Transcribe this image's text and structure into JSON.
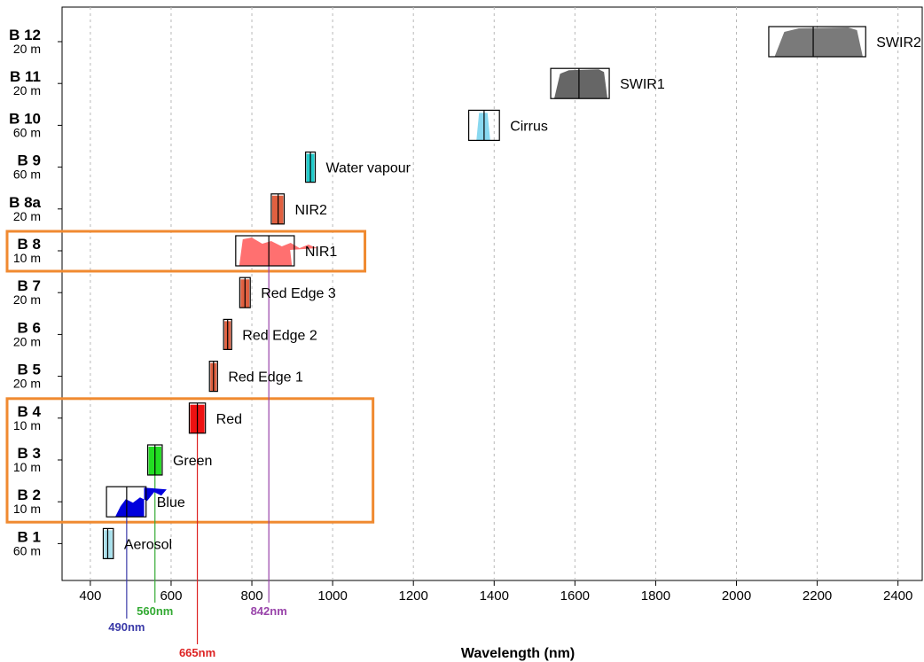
{
  "chart_data": {
    "type": "bar",
    "xlabel": "Wavelength (nm)",
    "xlim": [
      330,
      2460
    ],
    "xticks": [
      400,
      600,
      800,
      1000,
      1200,
      1400,
      1600,
      1800,
      2000,
      2200,
      2400
    ],
    "grid": "vertical dashed",
    "bands": [
      {
        "id": "B 1",
        "res": "60 m",
        "label": "Aerosol",
        "center": 443,
        "box": [
          432,
          457
        ],
        "fill": "#a8e0ec",
        "shape": "flat"
      },
      {
        "id": "B 2",
        "res": "10 m",
        "label": "Blue",
        "center": 490,
        "box": [
          440,
          538
        ],
        "fill": "#0000dd",
        "shape": "blue"
      },
      {
        "id": "B 3",
        "res": "10 m",
        "label": "Green",
        "center": 560,
        "box": [
          542,
          578
        ],
        "fill": "#22dd22",
        "shape": "flat"
      },
      {
        "id": "B 4",
        "res": "10 m",
        "label": "Red",
        "center": 665,
        "box": [
          645,
          685
        ],
        "fill": "#ee1111",
        "shape": "flat"
      },
      {
        "id": "B 5",
        "res": "20 m",
        "label": "Red Edge 1",
        "center": 705,
        "box": [
          695,
          715
        ],
        "fill": "#e06040",
        "shape": "flat"
      },
      {
        "id": "B 6",
        "res": "20 m",
        "label": "Red Edge 2",
        "center": 740,
        "box": [
          730,
          750
        ],
        "fill": "#e06040",
        "shape": "flat"
      },
      {
        "id": "B 7",
        "res": "20 m",
        "label": "Red Edge 3",
        "center": 783,
        "box": [
          770,
          796
        ],
        "fill": "#e06040",
        "shape": "flat"
      },
      {
        "id": "B 8",
        "res": "10 m",
        "label": "NIR1",
        "center": 842,
        "box": [
          760,
          905
        ],
        "fill": "#ff7070",
        "shape": "nir1"
      },
      {
        "id": "B 8a",
        "res": "20 m",
        "label": "NIR2",
        "center": 865,
        "box": [
          848,
          880
        ],
        "fill": "#e06040",
        "shape": "flat"
      },
      {
        "id": "B 9",
        "res": "60 m",
        "label": "Water vapour",
        "center": 945,
        "box": [
          933,
          957
        ],
        "fill": "#22cccc",
        "shape": "flat"
      },
      {
        "id": "B 10",
        "res": "60 m",
        "label": "Cirrus",
        "center": 1375,
        "box": [
          1337,
          1413
        ],
        "fill": "#88d8f0",
        "shape": "cirrus"
      },
      {
        "id": "B 11",
        "res": "20 m",
        "label": "SWIR1",
        "center": 1610,
        "box": [
          1540,
          1685
        ],
        "fill": "#666666",
        "shape": "swir"
      },
      {
        "id": "B 12",
        "res": "20 m",
        "label": "SWIR2",
        "center": 2190,
        "box": [
          2080,
          2320
        ],
        "fill": "#7a7a7a",
        "shape": "swir"
      }
    ],
    "callouts": [
      {
        "label": "490nm",
        "value": 490,
        "color": "#3a3aa8"
      },
      {
        "label": "560nm",
        "value": 560,
        "color": "#33aa33"
      },
      {
        "label": "665nm",
        "value": 665,
        "color": "#dd2222"
      },
      {
        "label": "842nm",
        "value": 842,
        "color": "#9944aa"
      }
    ],
    "highlights": [
      {
        "name": "visible-10m-highlight",
        "bands": [
          "B 2",
          "B 3",
          "B 4"
        ],
        "xmax": 1100,
        "color": "#f08a30"
      },
      {
        "name": "nir-10m-highlight",
        "bands": [
          "B 8"
        ],
        "xmax": 1080,
        "color": "#f08a30"
      }
    ]
  }
}
